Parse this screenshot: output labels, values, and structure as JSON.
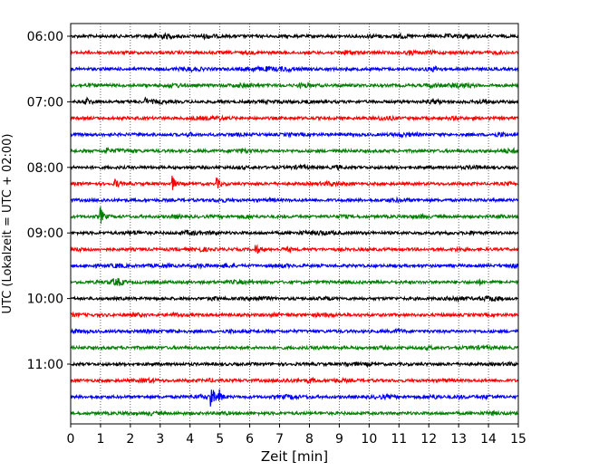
{
  "chart_data": {
    "type": "line",
    "title": "",
    "xlabel": "Zeit  [min]",
    "ylabel": "UTC (Lokalzeit = UTC + 02:00)",
    "xlim": [
      0,
      15
    ],
    "xticks": [
      0,
      1,
      2,
      3,
      4,
      5,
      6,
      7,
      8,
      9,
      10,
      11,
      12,
      13,
      14,
      15
    ],
    "xtick_labels": [
      "0",
      "1",
      "2",
      "3",
      "4",
      "5",
      "6",
      "7",
      "8",
      "9",
      "10",
      "11",
      "12",
      "13",
      "14",
      "15"
    ],
    "ytick_labels": [
      "06:00",
      "07:00",
      "08:00",
      "09:00",
      "10:00",
      "11:00"
    ],
    "trace_interval_min": 15,
    "trace_count": 24,
    "grid": "vertical dotted",
    "color_cycle": [
      "#000000",
      "#ff0000",
      "#0000ff",
      "#008000"
    ],
    "events": [
      {
        "trace": 4,
        "minute": 0.5,
        "amp": 1.6
      },
      {
        "trace": 4,
        "minute": 2.5,
        "amp": 1.2
      },
      {
        "trace": 7,
        "minute": 1.2,
        "amp": 1.5
      },
      {
        "trace": 9,
        "minute": 1.5,
        "amp": 1.8
      },
      {
        "trace": 9,
        "minute": 3.4,
        "amp": 2.8
      },
      {
        "trace": 9,
        "minute": 4.9,
        "amp": 2.0
      },
      {
        "trace": 11,
        "minute": 1.0,
        "amp": 3.2
      },
      {
        "trace": 13,
        "minute": 6.2,
        "amp": 2.2
      },
      {
        "trace": 22,
        "minute": 4.7,
        "amp": 5.0
      },
      {
        "trace": 22,
        "minute": 4.95,
        "amp": 3.0
      }
    ]
  }
}
